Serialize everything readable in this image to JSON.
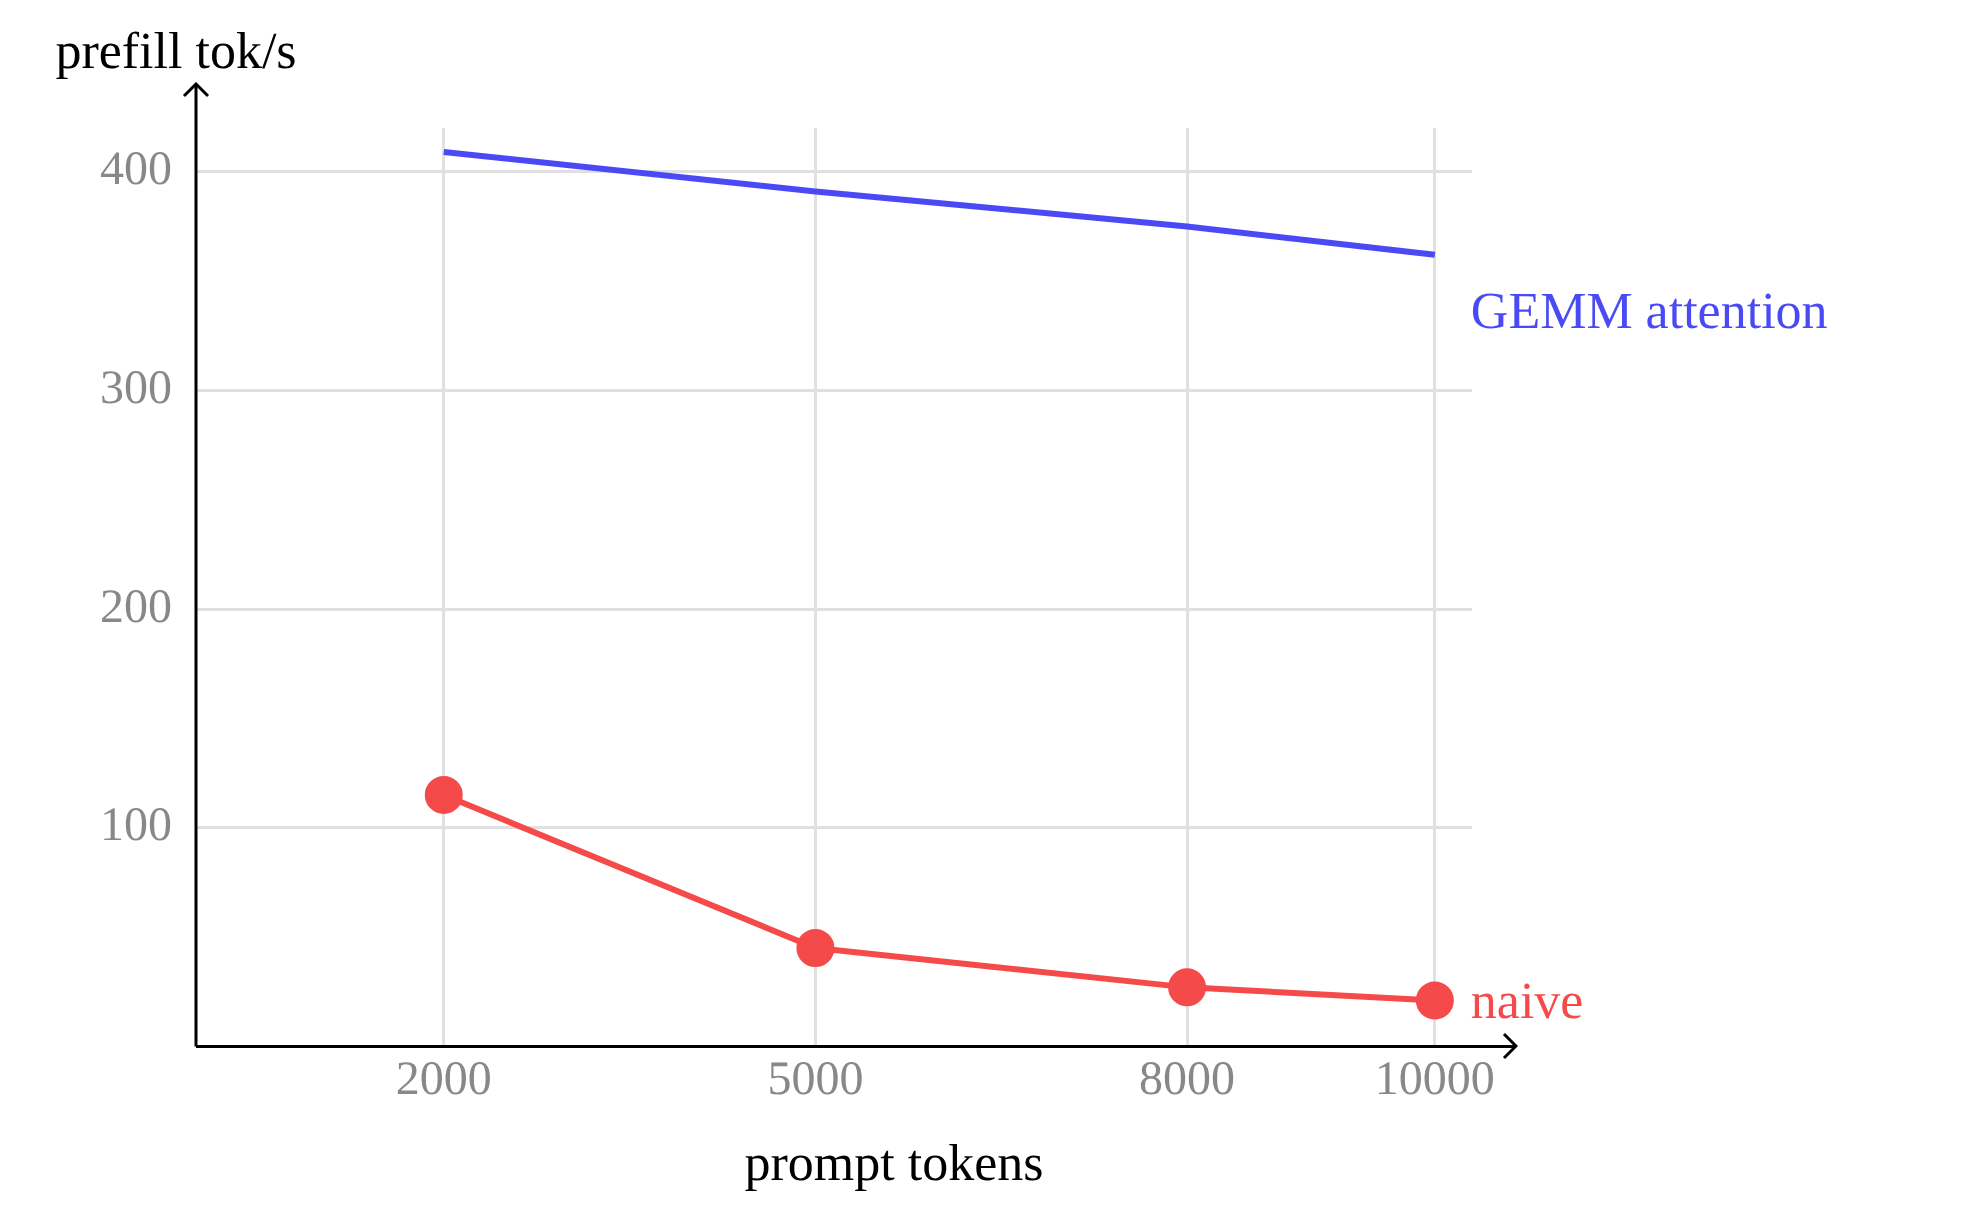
{
  "chart_data": {
    "type": "line",
    "xlabel": "prompt tokens",
    "ylabel": "prefill tok/s",
    "x": [
      2000,
      5000,
      8000,
      10000
    ],
    "series": [
      {
        "name": "GEMM attention",
        "color": "#4a4af5",
        "values": [
          409,
          391,
          375,
          362
        ],
        "marker": "none"
      },
      {
        "name": "naive",
        "color": "#f54a4a",
        "values": [
          115,
          45,
          27,
          21
        ],
        "marker": "circle"
      }
    ],
    "xlim": [
      0,
      10300
    ],
    "ylim": [
      0,
      420
    ],
    "xticks": [
      2000,
      5000,
      8000,
      10000
    ],
    "yticks": [
      100,
      200,
      300,
      400
    ],
    "grid": true,
    "legend": false
  }
}
